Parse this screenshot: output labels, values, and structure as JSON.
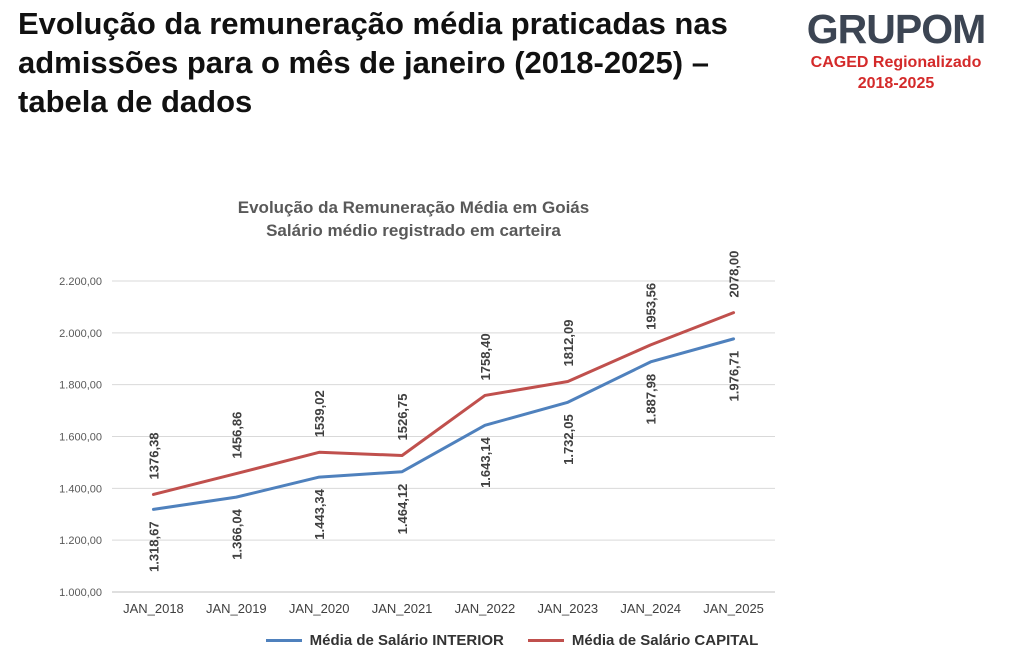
{
  "header": {
    "title": "Evolução da remuneração média praticadas nas admissões para o mês de janeiro (2018-2025) – tabela de dados"
  },
  "brand": {
    "logo_text": "GRUPOM",
    "subtitle_line1": "CAGED Regionalizado",
    "subtitle_line2": "2018-2025"
  },
  "chart_data": {
    "type": "line",
    "title": "Evolução da Remuneração Média em Goiás",
    "subtitle": "Salário médio registrado em carteira",
    "categories": [
      "JAN_2018",
      "JAN_2019",
      "JAN_2020",
      "JAN_2021",
      "JAN_2022",
      "JAN_2023",
      "JAN_2024",
      "JAN_2025"
    ],
    "ylim": [
      1000,
      2200
    ],
    "yticks": [
      1000,
      1200,
      1400,
      1600,
      1800,
      2000,
      2200
    ],
    "ytick_labels": [
      "1.000,00",
      "1.200,00",
      "1.400,00",
      "1.600,00",
      "1.800,00",
      "2.000,00",
      "2.200,00"
    ],
    "grid": true,
    "legend_position": "bottom",
    "series": [
      {
        "name": "Média de Salário INTERIOR",
        "color": "#4f81bd",
        "values": [
          1318.67,
          1366.04,
          1443.34,
          1464.12,
          1643.14,
          1732.05,
          1887.98,
          1976.71
        ],
        "labels": [
          "1.318,67",
          "1.366,04",
          "1.443,34",
          "1.464,12",
          "1.643,14",
          "1.732,05",
          "1.887,98",
          "1.976,71"
        ]
      },
      {
        "name": "Média de Salário CAPITAL",
        "color": "#c0504d",
        "values": [
          1376.38,
          1456.86,
          1539.02,
          1526.75,
          1758.4,
          1812.09,
          1953.56,
          2078.0
        ],
        "labels": [
          "1376,38",
          "1456,86",
          "1539,02",
          "1526,75",
          "1758,40",
          "1812,09",
          "1953,56",
          "2078,00"
        ]
      }
    ]
  }
}
